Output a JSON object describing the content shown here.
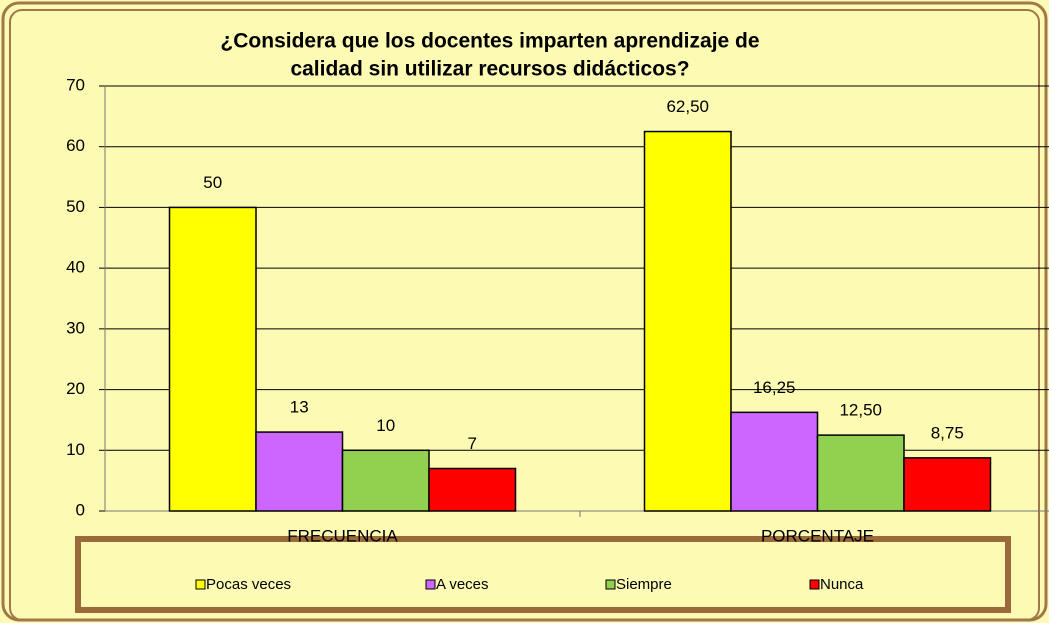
{
  "chart_data": {
    "type": "bar",
    "title": [
      "¿Considera que los docentes imparten  aprendizaje de",
      "calidad  sin utilizar recursos didácticos?"
    ],
    "categories": [
      "FRECUENCIA",
      "PORCENTAJE"
    ],
    "series": [
      {
        "name": "Pocas veces",
        "color": "#ffff00",
        "values": [
          50,
          62.5
        ],
        "value_labels": [
          "50",
          "62,50"
        ]
      },
      {
        "name": "A veces",
        "color": "#cc66ff",
        "values": [
          13,
          16.25
        ],
        "value_labels": [
          "13",
          "16,25"
        ]
      },
      {
        "name": "Siempre",
        "color": "#92d050",
        "values": [
          10,
          12.5
        ],
        "value_labels": [
          "10",
          "12,50"
        ]
      },
      {
        "name": "Nunca",
        "color": "#ff0000",
        "values": [
          7,
          8.75
        ],
        "value_labels": [
          "7",
          "8,75"
        ]
      }
    ],
    "ylim": [
      0,
      70
    ],
    "yticks": [
      0,
      10,
      20,
      30,
      40,
      50,
      60,
      70
    ],
    "grid": true,
    "legend": "bottom"
  }
}
